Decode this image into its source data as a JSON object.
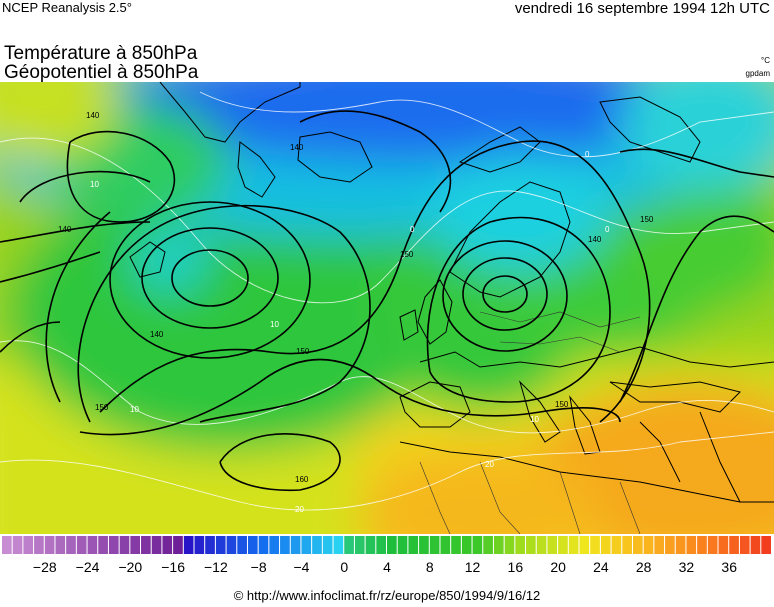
{
  "header": {
    "source": "NCEP Reanalysis 2.5°",
    "date": "vendredi 16 septembre 1994 12h UTC",
    "title_line1": "Température à 850hPa",
    "title_line2": "Géopotentiel à 850hPa",
    "unit_temp": "°C",
    "unit_geo": "gpdam"
  },
  "legend": {
    "tick_labels": [
      "−28",
      "−24",
      "−20",
      "−16",
      "−12",
      "−8",
      "−4",
      "0",
      "4",
      "8",
      "12",
      "16",
      "20",
      "24",
      "28",
      "32",
      "36"
    ],
    "range": [
      -32,
      40
    ]
  },
  "contour_labels": [
    "140",
    "140",
    "140",
    "140",
    "140",
    "150",
    "150",
    "150",
    "150",
    "150",
    "160",
    "10",
    "10",
    "10",
    "10",
    "20",
    "20",
    "0",
    "0",
    "0"
  ],
  "credit": "© http://www.infoclimat.fr/rz/europe/850/1994/9/16/12"
}
